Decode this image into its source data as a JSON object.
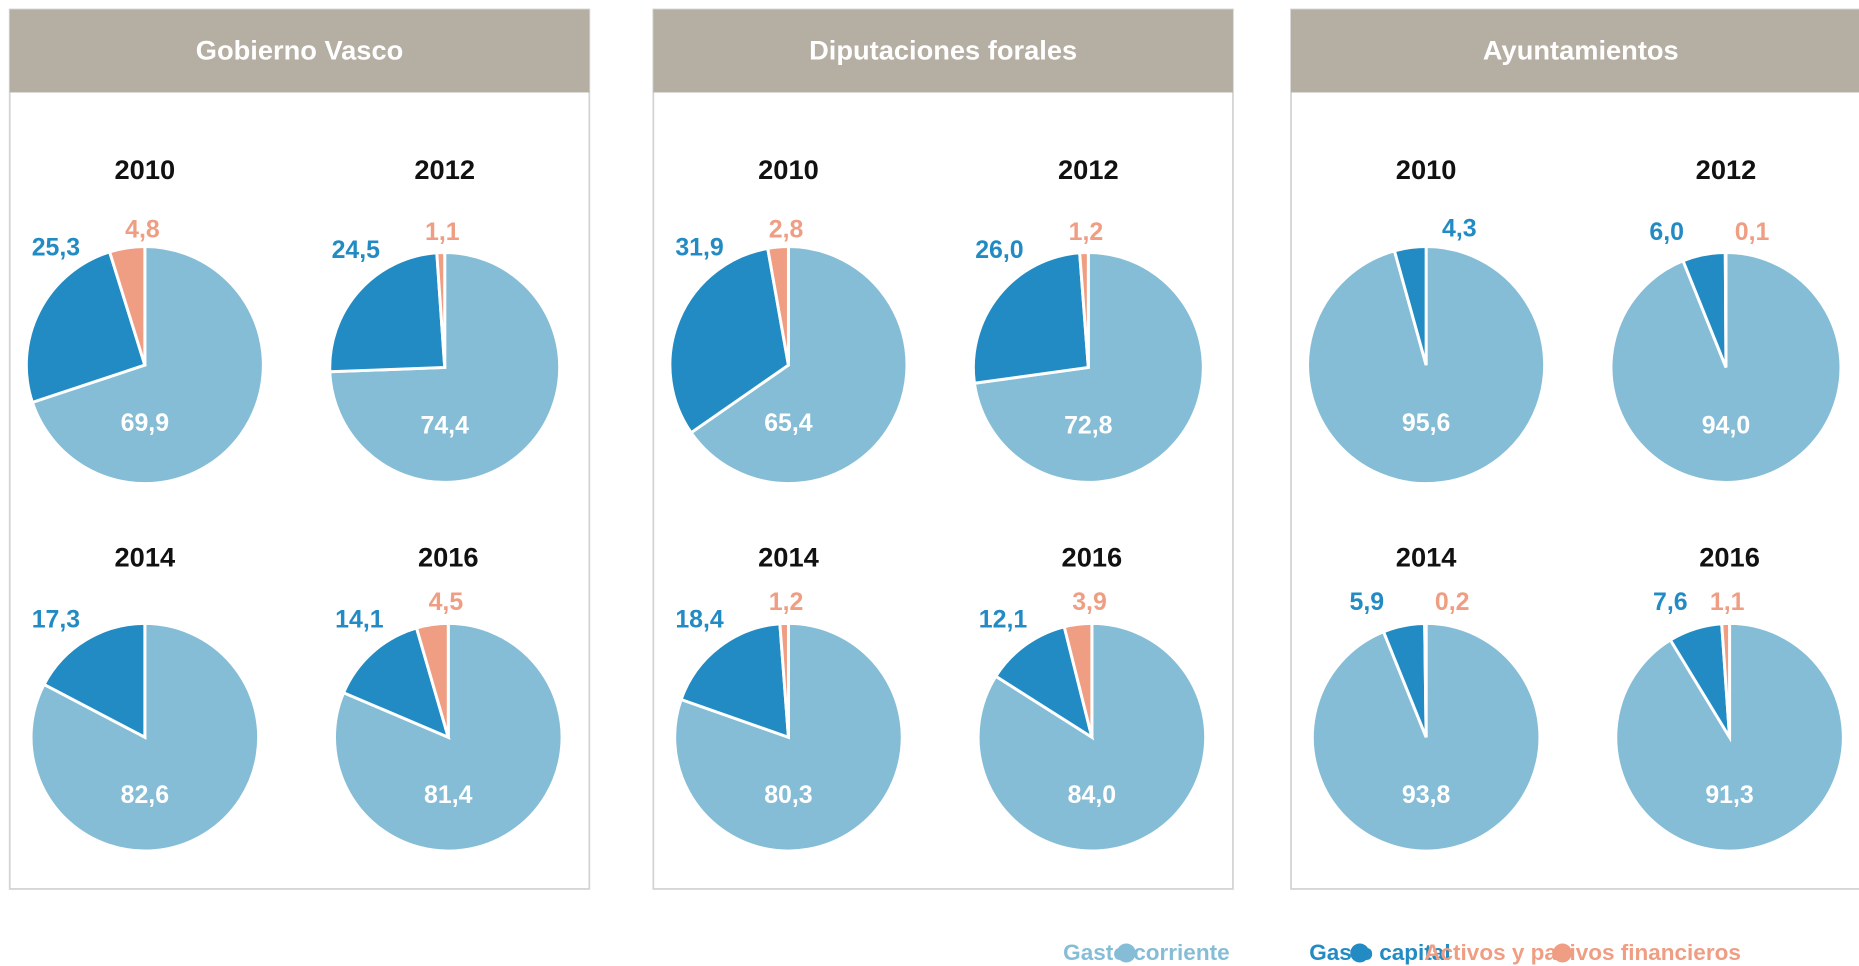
{
  "legend": [
    {
      "name": "Gasto corriente",
      "color": "#86bdd6"
    },
    {
      "name": "Gasto capital",
      "color": "#238bc3"
    },
    {
      "name": "Activos y pasivos financieros",
      "color": "#ef9e83"
    }
  ],
  "chart_data": [
    {
      "type": "pie",
      "title": "Gobierno Vasco",
      "pies": [
        {
          "title": "2010",
          "values": [
            69.9,
            25.3,
            4.8
          ],
          "value_labels": [
            "69,9",
            "25,3",
            "4,8"
          ]
        },
        {
          "title": "2012",
          "values": [
            74.4,
            24.5,
            1.1
          ],
          "value_labels": [
            "74,4",
            "24,5",
            "1,1"
          ]
        },
        {
          "title": "2014",
          "values": [
            82.6,
            17.3,
            null
          ],
          "value_labels": [
            "82,6",
            "17,3",
            null
          ]
        },
        {
          "title": "2016",
          "values": [
            81.4,
            14.1,
            4.5
          ],
          "value_labels": [
            "81,4",
            "14,1",
            "4,5"
          ]
        }
      ]
    },
    {
      "type": "pie",
      "title": "Diputaciones forales",
      "pies": [
        {
          "title": "2010",
          "values": [
            65.4,
            31.9,
            2.8
          ],
          "value_labels": [
            "65,4",
            "31,9",
            "2,8"
          ]
        },
        {
          "title": "2012",
          "values": [
            72.8,
            26.0,
            1.2
          ],
          "value_labels": [
            "72,8",
            "26,0",
            "1,2"
          ]
        },
        {
          "title": "2014",
          "values": [
            80.3,
            18.4,
            1.2
          ],
          "value_labels": [
            "80,3",
            "18,4",
            "1,2"
          ]
        },
        {
          "title": "2016",
          "values": [
            84.0,
            12.1,
            3.9
          ],
          "value_labels": [
            "84,0",
            "12,1",
            "3,9"
          ]
        }
      ]
    },
    {
      "type": "pie",
      "title": "Ayuntamientos",
      "pies": [
        {
          "title": "2010",
          "values": [
            95.6,
            4.3,
            null
          ],
          "value_labels": [
            "95,6",
            "4,3",
            null
          ]
        },
        {
          "title": "2012",
          "values": [
            94.0,
            6.0,
            0.1
          ],
          "value_labels": [
            "94,0",
            "6,0",
            "0,1"
          ]
        },
        {
          "title": "2014",
          "values": [
            93.8,
            5.9,
            0.2
          ],
          "value_labels": [
            "93,8",
            "5,9",
            "0,2"
          ]
        },
        {
          "title": "2016",
          "values": [
            91.3,
            7.6,
            1.1
          ],
          "value_labels": [
            "91,3",
            "7,6",
            "1,1"
          ]
        }
      ]
    }
  ]
}
